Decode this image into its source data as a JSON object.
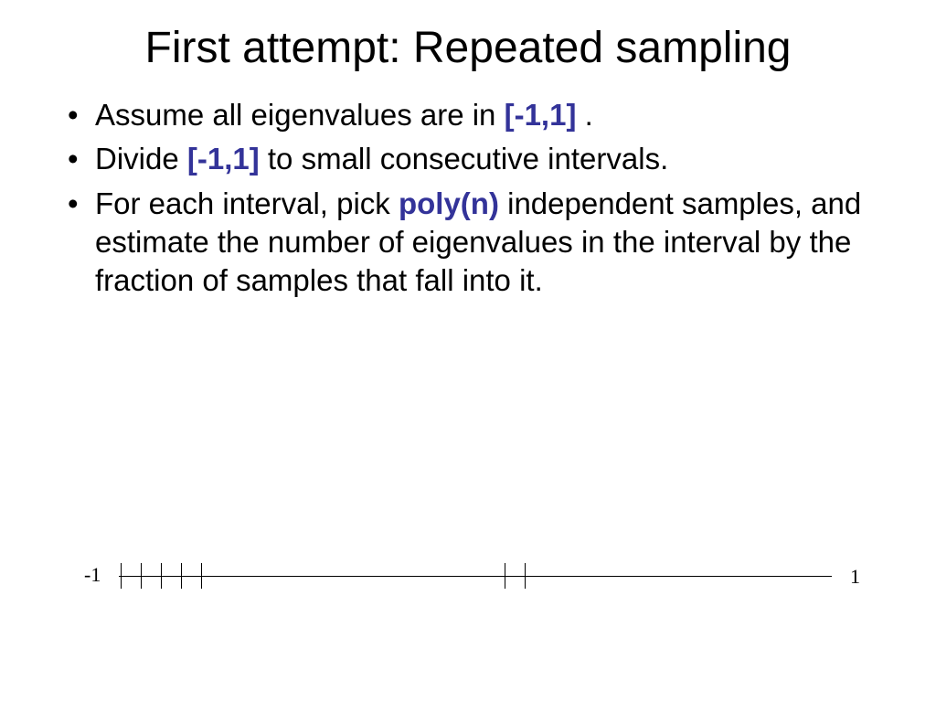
{
  "title": "First attempt: Repeated sampling",
  "bullets": [
    {
      "pre": "Assume all eigenvalues are in ",
      "hl": "[-1,1]",
      "post": "  ."
    },
    {
      "pre": "Divide ",
      "hl": "[-1,1]",
      "post": " to small consecutive intervals."
    },
    {
      "pre": "For each interval, pick ",
      "hl": "poly(n)",
      "post": " independent samples, and estimate the number of eigenvalues in the interval by the fraction of samples that fall into it."
    }
  ],
  "diagram": {
    "left_label": "-1",
    "right_label": "1",
    "axis_start": 10,
    "axis_width": 780,
    "tick_positions": [
      12,
      34,
      56,
      78,
      100,
      432,
      454
    ],
    "tick_height": 28,
    "line_color": "#000000",
    "background": "#ffffff"
  },
  "colors": {
    "highlight": "#333399",
    "text": "#000000",
    "background": "#ffffff"
  },
  "fonts": {
    "title_size": 48,
    "body_size": 33,
    "label_size": 22
  }
}
